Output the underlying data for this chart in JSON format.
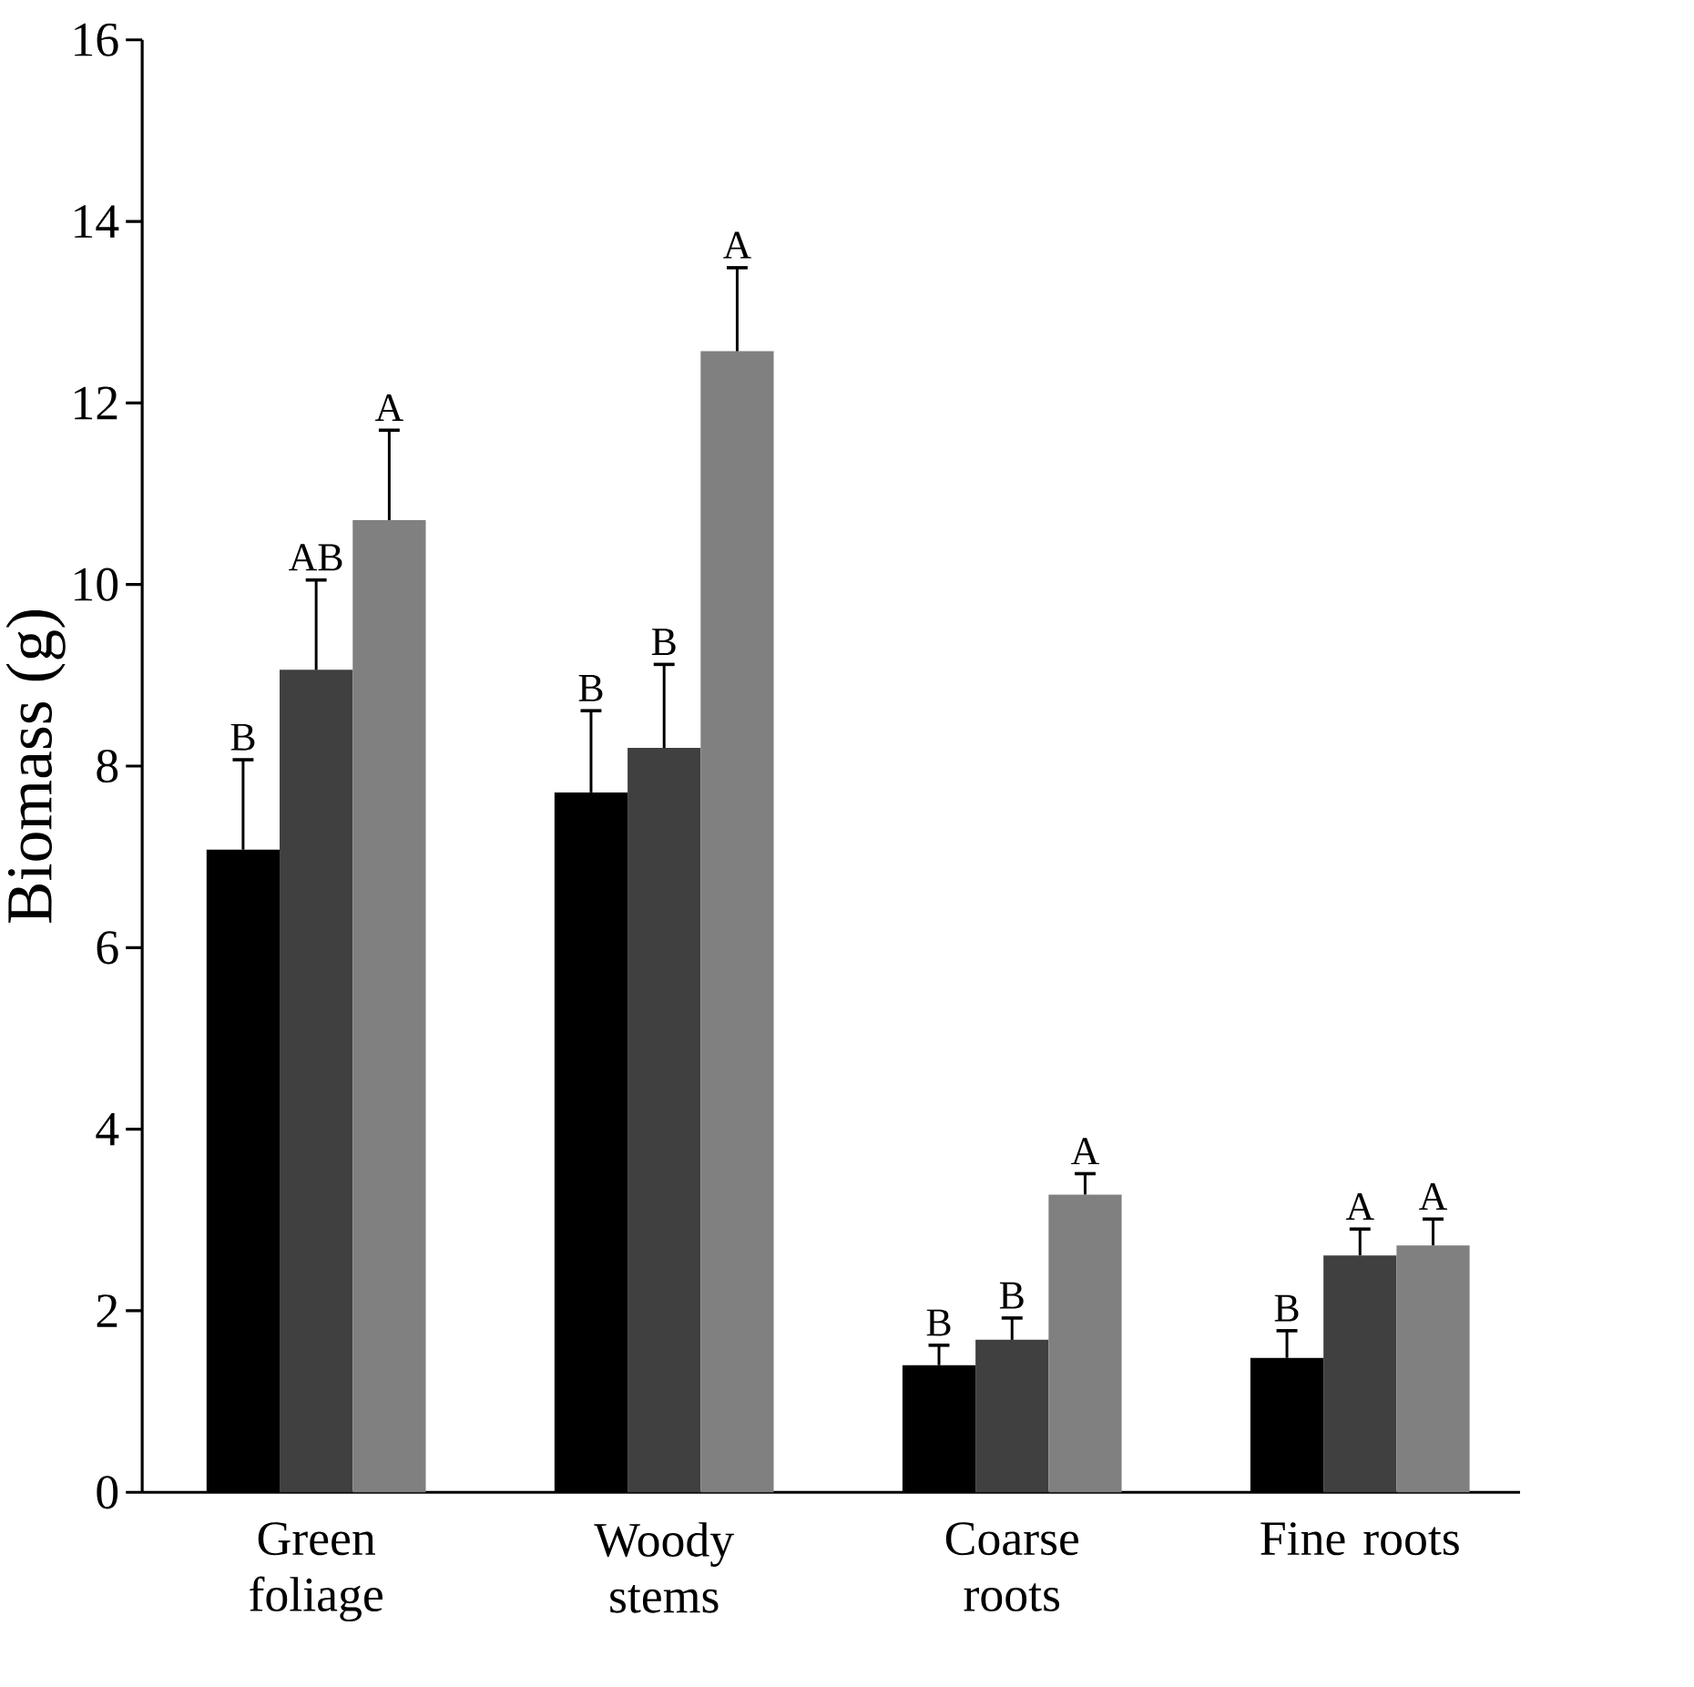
{
  "chart_data": {
    "type": "bar",
    "ylabel": "Biomass (g)",
    "categories": [
      "Green foliage",
      "Woody stems",
      "Coarse roots",
      "Fine roots"
    ],
    "ylim": [
      0,
      16
    ],
    "yticks": [
      0,
      2,
      4,
      6,
      8,
      10,
      12,
      14,
      16
    ],
    "grid": false,
    "series": [
      {
        "color": "#000000",
        "values": [
          7.08,
          7.71,
          1.4,
          1.48
        ],
        "errors": [
          [
            7.08,
            8.07
          ],
          [
            7.71,
            8.61
          ],
          [
            1.4,
            1.62
          ],
          [
            1.48,
            1.78
          ]
        ],
        "value_labels": [
          "B",
          "B",
          "B",
          "B"
        ]
      },
      {
        "color": "#404040",
        "values": [
          9.06,
          8.2,
          1.68,
          2.61
        ],
        "errors": [
          [
            9.06,
            10.05
          ],
          [
            8.2,
            9.12
          ],
          [
            1.68,
            1.92
          ],
          [
            2.61,
            2.9
          ]
        ],
        "value_labels": [
          "AB",
          "B",
          "B",
          "A"
        ]
      },
      {
        "color": "#808080",
        "values": [
          10.71,
          12.57,
          3.28,
          2.72
        ],
        "errors": [
          [
            10.71,
            11.7
          ],
          [
            12.57,
            13.49
          ],
          [
            3.28,
            3.51
          ],
          [
            2.72,
            3.01
          ]
        ],
        "value_labels": [
          "A",
          "A",
          "A",
          "A"
        ]
      }
    ]
  }
}
